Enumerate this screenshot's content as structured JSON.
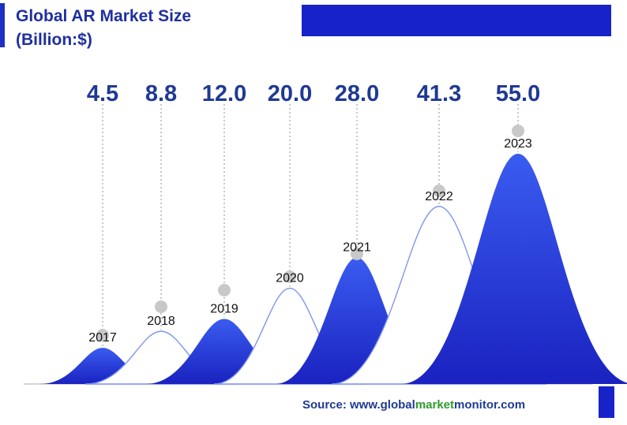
{
  "title_line1": "Global AR  Market Size",
  "title_line2": "(Billion:$)",
  "source": {
    "prefix": "Source: www.",
    "part1": "global",
    "part2": "market",
    "part3": "monitor",
    "suffix": ".com"
  },
  "colors": {
    "primary": "#1f3a93",
    "accent": "#1723c9",
    "green": "#2e9b2e",
    "peak_dark": "#1a22c0",
    "peak_light": "#3a5cf0",
    "dot": "#c8c8c8"
  },
  "chart_data": {
    "type": "area",
    "categories": [
      "2017",
      "2018",
      "2019",
      "2020",
      "2021",
      "2022",
      "2023"
    ],
    "values": [
      4.5,
      8.8,
      12.0,
      20.0,
      28.0,
      41.3,
      55.0
    ],
    "value_labels": [
      "4.5",
      "8.8",
      "12.0",
      "20.0",
      "28.0",
      "41.3",
      "55.0"
    ],
    "styles": [
      "filled",
      "outline",
      "filled",
      "outline",
      "filled",
      "outline",
      "filled"
    ],
    "title": "Global AR  Market Size (Billion:$)",
    "grid": false,
    "legend": "none"
  }
}
